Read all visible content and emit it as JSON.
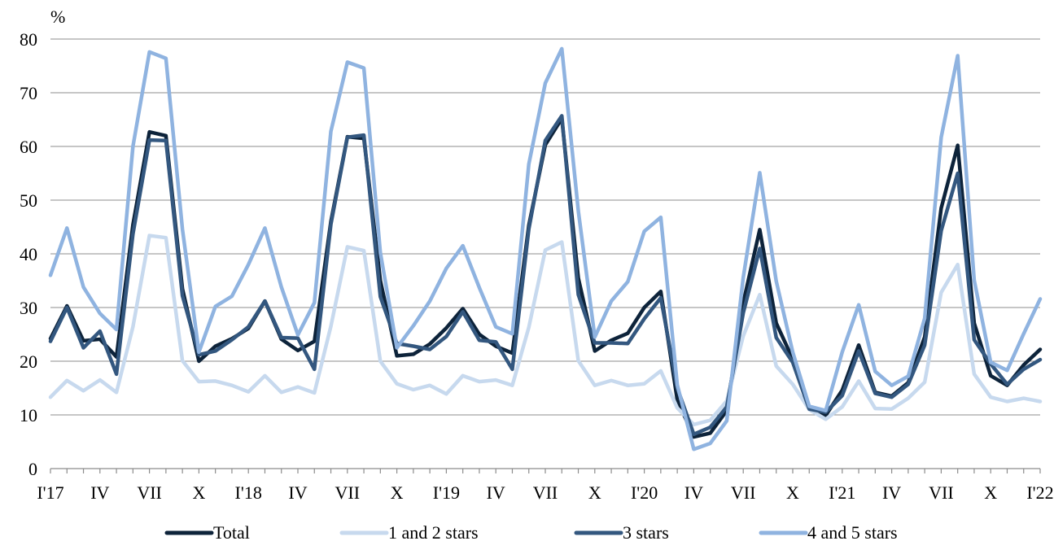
{
  "chart_data": {
    "type": "line",
    "unit": "%",
    "ylim": [
      0,
      80
    ],
    "yticks": [
      0,
      10,
      20,
      30,
      40,
      50,
      60,
      70,
      80
    ],
    "x_tick_labels": [
      "I'17",
      "IV",
      "VII",
      "X",
      "I'18",
      "IV",
      "VII",
      "X",
      "I'19",
      "IV",
      "VII",
      "X",
      "I'20",
      "IV",
      "VII",
      "X",
      "I'21",
      "IV",
      "VII",
      "X",
      "I'22"
    ],
    "x_label_every": 3,
    "n_points": 61,
    "grid": true,
    "legend_position": "bottom",
    "series": [
      {
        "name": "Total",
        "color": "#0d233a",
        "values": [
          24.2,
          30.3,
          23.8,
          24.1,
          20.8,
          45.4,
          62.7,
          62.0,
          33.5,
          20.0,
          22.8,
          24.2,
          26.1,
          31.2,
          24.1,
          22.0,
          23.7,
          46.0,
          61.8,
          61.5,
          35.0,
          21.0,
          21.3,
          23.2,
          26.2,
          29.8,
          25.0,
          22.8,
          21.5,
          45.3,
          60.3,
          65.2,
          35.5,
          21.9,
          23.9,
          25.2,
          30.0,
          33.0,
          12.8,
          5.9,
          6.6,
          10.8,
          30.9,
          44.5,
          27.1,
          20.4,
          11.2,
          9.9,
          14.6,
          23.0,
          14.2,
          13.5,
          16.0,
          24.5,
          48.5,
          60.2,
          27.1,
          17.3,
          15.5,
          19.3,
          22.2
        ]
      },
      {
        "name": "1 and 2 stars",
        "color": "#c7d9ee",
        "values": [
          13.3,
          16.4,
          14.5,
          16.5,
          14.2,
          26.4,
          43.4,
          43.0,
          20.1,
          16.2,
          16.3,
          15.5,
          14.3,
          17.3,
          14.2,
          15.2,
          14.1,
          26.5,
          41.3,
          40.6,
          20.0,
          15.8,
          14.7,
          15.5,
          13.9,
          17.3,
          16.2,
          16.5,
          15.5,
          26.3,
          40.7,
          42.2,
          20.1,
          15.5,
          16.4,
          15.5,
          15.8,
          18.2,
          11.3,
          8.2,
          9.0,
          12.6,
          24.7,
          32.4,
          19.1,
          15.7,
          11.0,
          9.2,
          11.5,
          16.3,
          11.2,
          11.1,
          13.1,
          16.1,
          32.8,
          38.0,
          17.6,
          13.3,
          12.5,
          13.1,
          12.5
        ]
      },
      {
        "name": "3 stars",
        "color": "#33577f",
        "values": [
          23.7,
          30.0,
          22.5,
          25.6,
          17.6,
          43.7,
          61.2,
          61.1,
          32.2,
          21.2,
          21.9,
          24.0,
          26.4,
          31.2,
          24.4,
          24.3,
          18.5,
          45.5,
          61.7,
          62.1,
          32.0,
          23.3,
          22.8,
          22.2,
          24.6,
          29.2,
          23.9,
          23.6,
          18.5,
          44.6,
          61.1,
          65.7,
          32.4,
          23.4,
          23.4,
          23.3,
          27.9,
          31.8,
          15.0,
          6.4,
          7.7,
          11.5,
          29.0,
          41.0,
          24.4,
          19.8,
          11.1,
          10.5,
          13.6,
          21.9,
          14.0,
          13.3,
          15.7,
          23.0,
          44.3,
          55.0,
          24.0,
          19.5,
          15.7,
          18.5,
          20.3
        ]
      },
      {
        "name": "4 and 5 stars",
        "color": "#8fb3e0",
        "values": [
          36.0,
          44.8,
          33.8,
          28.9,
          25.9,
          60.0,
          77.6,
          76.4,
          44.6,
          21.7,
          30.2,
          32.1,
          38.0,
          44.8,
          33.8,
          24.9,
          30.9,
          62.8,
          75.7,
          74.6,
          40.2,
          22.5,
          26.6,
          31.2,
          37.3,
          41.5,
          33.7,
          26.4,
          25.1,
          56.7,
          71.8,
          78.2,
          48.0,
          24.5,
          31.2,
          34.8,
          44.2,
          46.8,
          15.6,
          3.6,
          4.7,
          8.9,
          35.6,
          55.1,
          34.9,
          21.7,
          11.6,
          10.8,
          21.7,
          30.5,
          18.1,
          15.5,
          17.2,
          28.0,
          61.7,
          76.9,
          35.1,
          19.8,
          18.3,
          25.1,
          31.6
        ]
      }
    ]
  }
}
